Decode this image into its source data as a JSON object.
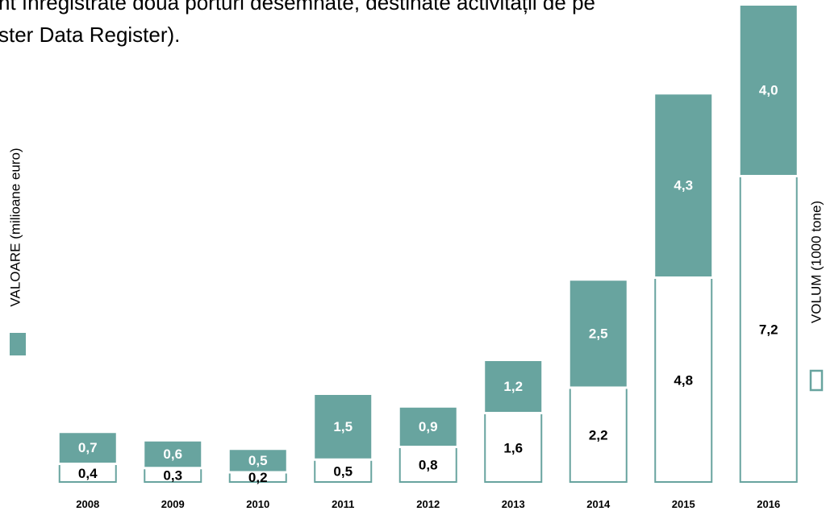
{
  "text_lines": [
    "nt înregistrate două porturi desemnate, destinate activității de pe",
    "ster Data Register)."
  ],
  "chart_data": {
    "type": "stacked_bar",
    "categories": [
      "2008",
      "2009",
      "2010",
      "2011",
      "2012",
      "2013",
      "2014",
      "2015",
      "2016"
    ],
    "series": [
      {
        "name": "VOLUM (1000 tone)",
        "color": "#ffffff",
        "edge_color": "#68a49f",
        "values": [
          0.4,
          0.3,
          0.2,
          0.5,
          0.8,
          1.6,
          2.2,
          4.8,
          7.2
        ],
        "value_labels": [
          "0,4",
          "0,3",
          "0,2",
          "0,5",
          "0,8",
          "1,6",
          "2,2",
          "4,8",
          "7,2"
        ]
      },
      {
        "name": "VALOARE (milioane euro)",
        "color": "#68a49f",
        "values": [
          0.7,
          0.6,
          0.5,
          1.5,
          0.9,
          1.2,
          2.5,
          4.3,
          4.0
        ],
        "value_labels": [
          "0,7",
          "0,6",
          "0,5",
          "1,5",
          "0,9",
          "1,2",
          "2,5",
          "4,3",
          "4,0"
        ]
      }
    ]
  }
}
